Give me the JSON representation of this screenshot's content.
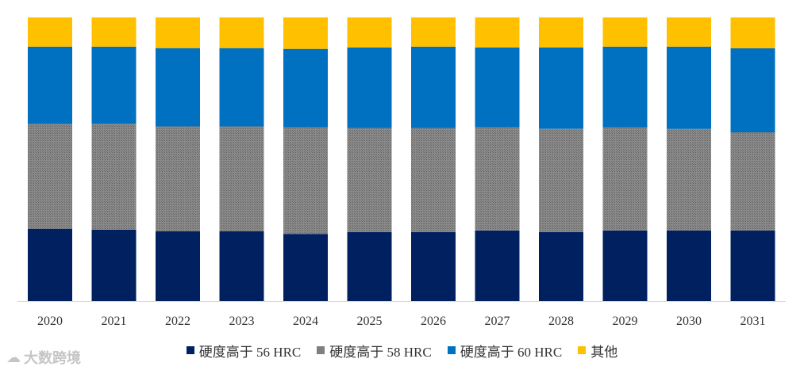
{
  "chart_data": {
    "type": "bar",
    "stacked": true,
    "normalized": true,
    "categories": [
      "2020",
      "2021",
      "2022",
      "2023",
      "2024",
      "2025",
      "2026",
      "2027",
      "2028",
      "2029",
      "2030",
      "2031"
    ],
    "ylim": [
      0,
      100
    ],
    "grid": false,
    "legend_position": "bottom",
    "series": [
      {
        "name": "硬度高于 56 HRC",
        "color": "#002060",
        "values": [
          25.5,
          25.2,
          24.6,
          24.6,
          23.7,
          24.3,
          24.3,
          24.9,
          24.3,
          24.9,
          24.9,
          24.9
        ]
      },
      {
        "name": "硬度高于 58 HRC",
        "color": "#7F7F7F",
        "values": [
          37.0,
          37.3,
          37.0,
          37.0,
          37.6,
          36.7,
          36.7,
          36.4,
          36.4,
          36.4,
          35.8,
          34.6
        ]
      },
      {
        "name": "硬度高于 60 HRC",
        "color": "#0070C0",
        "values": [
          27.2,
          27.2,
          27.6,
          27.6,
          27.6,
          28.4,
          28.7,
          28.1,
          28.7,
          28.4,
          29.0,
          29.6
        ]
      },
      {
        "name": "其他",
        "color": "#FFC000",
        "values": [
          10.3,
          10.3,
          10.8,
          10.8,
          11.1,
          10.6,
          10.3,
          10.6,
          10.6,
          10.3,
          10.3,
          10.9
        ]
      }
    ]
  },
  "watermark": {
    "text": "大数跨境"
  }
}
